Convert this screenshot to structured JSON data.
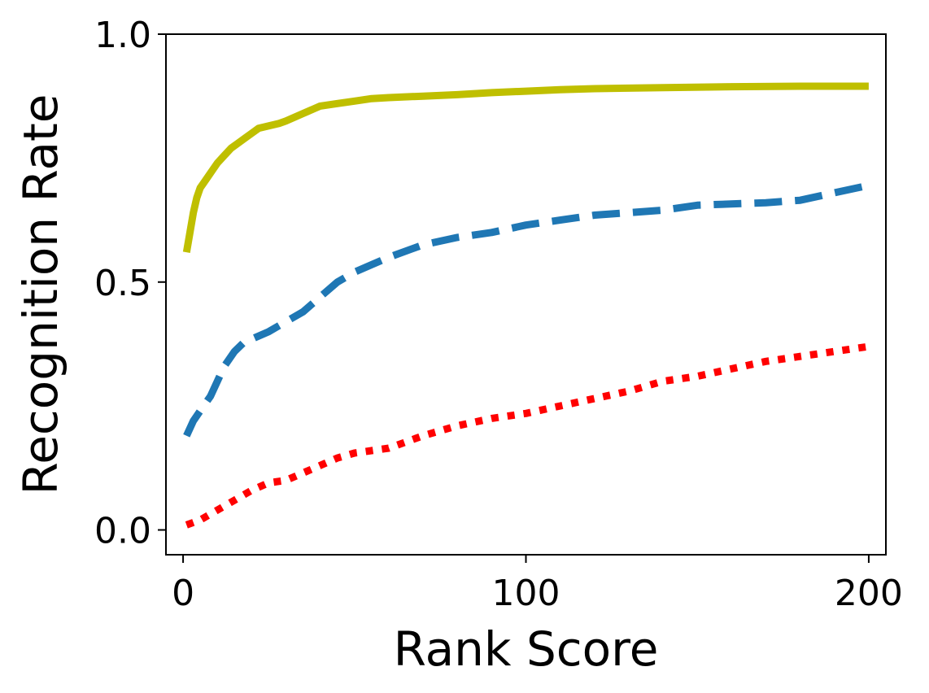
{
  "chart_data": {
    "type": "line",
    "title": "",
    "xlabel": "Rank Score",
    "ylabel": "Recognition Rate",
    "xlim": [
      -5,
      205
    ],
    "ylim": [
      -0.05,
      1.0
    ],
    "xticks": [
      0,
      100,
      200
    ],
    "xtick_labels": [
      "0",
      "100",
      "200"
    ],
    "yticks": [
      0.0,
      0.5,
      1.0
    ],
    "ytick_labels": [
      "0.0",
      "0.5",
      "1.0"
    ],
    "grid": false,
    "legend": "none",
    "series": [
      {
        "color": "#bfbf00",
        "style": "solid",
        "x": [
          1,
          2,
          3,
          4,
          5,
          6,
          8,
          10,
          12,
          14,
          16,
          18,
          20,
          22,
          25,
          28,
          30,
          35,
          40,
          45,
          50,
          55,
          60,
          70,
          80,
          90,
          100,
          110,
          120,
          140,
          160,
          180,
          200
        ],
        "y": [
          0.56,
          0.6,
          0.64,
          0.67,
          0.69,
          0.7,
          0.72,
          0.74,
          0.755,
          0.77,
          0.78,
          0.79,
          0.8,
          0.81,
          0.815,
          0.82,
          0.825,
          0.84,
          0.855,
          0.86,
          0.865,
          0.87,
          0.872,
          0.875,
          0.878,
          0.882,
          0.885,
          0.888,
          0.89,
          0.892,
          0.894,
          0.895,
          0.895
        ]
      },
      {
        "color": "#1f77b4",
        "style": "dashed",
        "x": [
          1,
          3,
          5,
          8,
          10,
          12,
          15,
          18,
          20,
          25,
          30,
          35,
          40,
          45,
          50,
          55,
          60,
          70,
          80,
          90,
          100,
          110,
          120,
          140,
          150,
          170,
          180,
          190,
          200
        ],
        "y": [
          0.19,
          0.22,
          0.24,
          0.27,
          0.3,
          0.33,
          0.36,
          0.38,
          0.385,
          0.4,
          0.42,
          0.44,
          0.47,
          0.5,
          0.52,
          0.535,
          0.55,
          0.575,
          0.59,
          0.6,
          0.615,
          0.625,
          0.635,
          0.645,
          0.655,
          0.66,
          0.665,
          0.68,
          0.695
        ]
      },
      {
        "color": "#ff0000",
        "style": "dotted",
        "x": [
          1,
          5,
          10,
          15,
          20,
          25,
          30,
          35,
          40,
          45,
          50,
          60,
          70,
          80,
          90,
          100,
          110,
          120,
          130,
          140,
          150,
          160,
          170,
          180,
          190,
          200
        ],
        "y": [
          0.01,
          0.02,
          0.04,
          0.06,
          0.08,
          0.095,
          0.1,
          0.115,
          0.13,
          0.145,
          0.155,
          0.165,
          0.19,
          0.21,
          0.225,
          0.235,
          0.25,
          0.265,
          0.28,
          0.3,
          0.31,
          0.325,
          0.34,
          0.35,
          0.36,
          0.37
        ]
      }
    ]
  }
}
